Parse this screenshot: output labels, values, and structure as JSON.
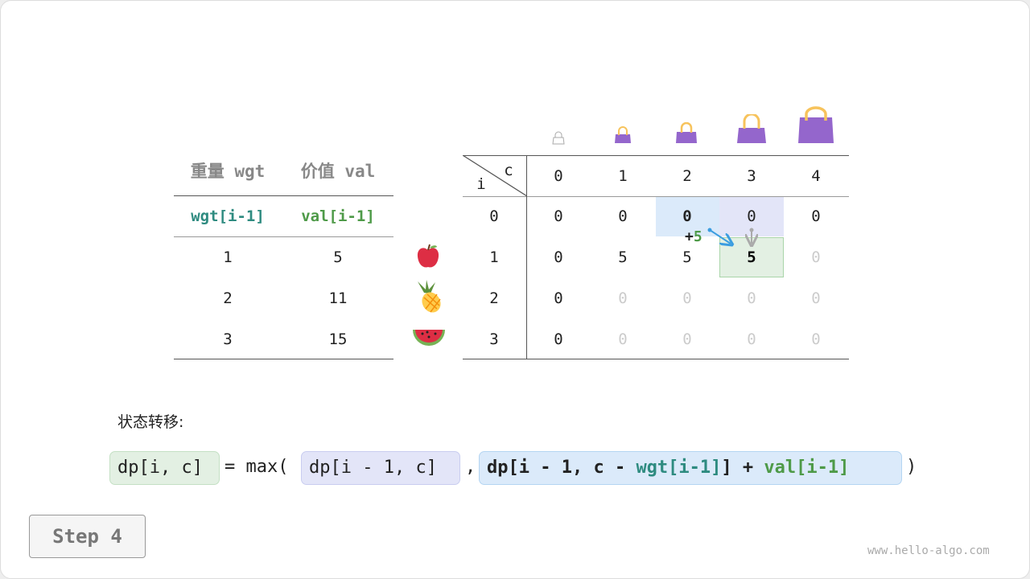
{
  "items_table": {
    "headers": [
      "重量 wgt",
      "价值 val"
    ],
    "subheaders": [
      "wgt[i-1]",
      "val[i-1]"
    ],
    "rows": [
      {
        "wgt": "1",
        "val": "5",
        "fruit": "apple"
      },
      {
        "wgt": "2",
        "val": "11",
        "fruit": "pineapple"
      },
      {
        "wgt": "3",
        "val": "15",
        "fruit": "watermelon"
      }
    ]
  },
  "dp_table": {
    "corner_i": "i",
    "corner_c": "c",
    "col_headers": [
      "0",
      "1",
      "2",
      "3",
      "4"
    ],
    "row_headers": [
      "0",
      "1",
      "2",
      "3"
    ],
    "cells": [
      [
        "0",
        "0",
        "0",
        "0",
        "0"
      ],
      [
        "0",
        "5",
        "5",
        "5",
        "0"
      ],
      [
        "0",
        "0",
        "0",
        "0",
        "0"
      ],
      [
        "0",
        "0",
        "0",
        "0",
        "0"
      ]
    ],
    "bag_icons": [
      "bag-capacity-0",
      "bag-capacity-1",
      "bag-capacity-2",
      "bag-capacity-3",
      "bag-capacity-4"
    ],
    "plus_label": "+",
    "plus_value": "5"
  },
  "formula": {
    "title": "状态转移:",
    "lhs": "dp[i, c]",
    "eq": "= max(",
    "opt1": "dp[i - 1, c]",
    "comma": ",",
    "opt2_a": "dp[i - 1, c - ",
    "opt2_wgt": "wgt[i-1]",
    "opt2_b": "] + ",
    "opt2_val": "val[i-1]",
    "close": ")"
  },
  "step_label": "Step 4",
  "watermark": "www.hello-algo.com",
  "colors": {
    "teal": "#2e8b80",
    "green": "#4e9a48",
    "blue_hl": "#dbeafa",
    "purple_hl": "#e3e5f8",
    "green_hl": "#e3f0e3",
    "bag": "#9466cc",
    "handle": "#f7c35c"
  }
}
